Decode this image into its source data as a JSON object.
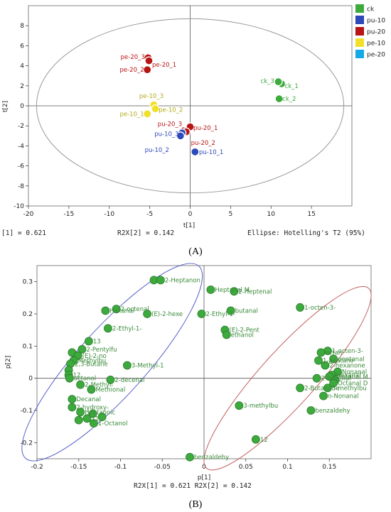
{
  "chart_data": [
    {
      "type": "scatter",
      "panel": "(A)",
      "xlabel": "t[1]",
      "ylabel": "t[2]",
      "xlim": [
        -20,
        20
      ],
      "ylim": [
        -10,
        10
      ],
      "xticks": [
        -20,
        -15,
        -10,
        -5,
        0,
        5,
        10,
        15
      ],
      "yticks": [
        8,
        6,
        4,
        2,
        0,
        -2,
        -4,
        -6,
        -8,
        -10
      ],
      "colors": {
        "ck": "#3daa3d",
        "pu-10": "#2e49b8",
        "pu-20": "#b81414",
        "pe-10": "#f0e02a",
        "pe-20": "#17a8e8"
      },
      "legend": [
        {
          "name": "ck",
          "color": "#3daa3d"
        },
        {
          "name": "pu-10",
          "color": "#2e49b8"
        },
        {
          "name": "pu-20",
          "color": "#b81414"
        },
        {
          "name": "pe-10",
          "color": "#f0e02a"
        },
        {
          "name": "pe-20",
          "color": "#17a8e8"
        }
      ],
      "points": [
        {
          "label": "ck_1",
          "group": "ck",
          "x": 11.3,
          "y": 2.2,
          "lx": 0.4,
          "ly": -0.2,
          "anchor": "start"
        },
        {
          "label": "ck_3",
          "group": "ck",
          "x": 10.9,
          "y": 2.4,
          "lx": -0.5,
          "ly": 0.1,
          "anchor": "end"
        },
        {
          "label": "ck_2",
          "group": "ck",
          "x": 11.0,
          "y": 0.7,
          "lx": 0.4,
          "ly": 0.0,
          "anchor": "start"
        },
        {
          "label": "pe-20_3",
          "group": "pu-20",
          "x": -5.2,
          "y": 4.8,
          "lx": -0.4,
          "ly": 0.1,
          "anchor": "end"
        },
        {
          "label": "pe-20_1",
          "group": "pu-20",
          "x": -5.1,
          "y": 4.5,
          "lx": 0.4,
          "ly": -0.4,
          "anchor": "start"
        },
        {
          "label": "pe-20_2",
          "group": "pu-20",
          "x": -5.3,
          "y": 3.6,
          "lx": -0.4,
          "ly": 0.0,
          "anchor": "end"
        },
        {
          "label": "pe-10_3",
          "group": "pe-10",
          "x": -4.5,
          "y": 0.1,
          "lx": -0.3,
          "ly": 0.9,
          "anchor": "middle"
        },
        {
          "label": "pe-10_2",
          "group": "pe-10",
          "x": -4.3,
          "y": -0.3,
          "lx": 0.4,
          "ly": -0.1,
          "anchor": "start"
        },
        {
          "label": "pe-10_1",
          "group": "pe-10",
          "x": -5.3,
          "y": -0.8,
          "lx": -0.4,
          "ly": 0.0,
          "anchor": "end"
        },
        {
          "label": "pu-20_3",
          "group": "pu-20",
          "x": -0.8,
          "y": -2.5,
          "lx": -0.2,
          "ly": 0.7,
          "anchor": "end"
        },
        {
          "label": "pu-20_1",
          "group": "pu-20",
          "x": 0.0,
          "y": -2.1,
          "lx": 0.4,
          "ly": -0.1,
          "anchor": "start"
        },
        {
          "label": "pu-20_2",
          "group": "pu-20",
          "x": -0.5,
          "y": -2.6,
          "lx": 0.6,
          "ly": -1.1,
          "anchor": "start"
        },
        {
          "label": "pu-10_3",
          "group": "pu-10",
          "x": -1.0,
          "y": -2.7,
          "lx": -0.4,
          "ly": -0.1,
          "anchor": "end"
        },
        {
          "label": "pu-10_2",
          "group": "pu-10",
          "x": -1.2,
          "y": -3.0,
          "lx": -1.4,
          "ly": -1.4,
          "anchor": "end"
        },
        {
          "label": "pu-10_1",
          "group": "pu-10",
          "x": 0.6,
          "y": -4.6,
          "lx": 0.5,
          "ly": 0.0,
          "anchor": "start"
        }
      ],
      "ellipse": {
        "cx": 0,
        "cy": 0,
        "rx": 19.0,
        "ry": 8.7
      },
      "footer": {
        "left": "[1] = 0.621",
        "mid": "R2X[2] = 0.142",
        "right": "Ellipse: Hotelling's T2 (95%)"
      }
    },
    {
      "type": "scatter",
      "panel": "(B)",
      "xlabel": "p[1]",
      "ylabel": "p[2]",
      "xlim": [
        -0.2,
        0.2
      ],
      "ylim": [
        -0.25,
        0.35
      ],
      "xticks": [
        -0.2,
        -0.15,
        -0.1,
        -0.05,
        0,
        0.05,
        0.1,
        0.15
      ],
      "yticks": [
        0.3,
        0.2,
        0.1,
        0,
        -0.1,
        -0.2
      ],
      "point_color": "#3daa3d",
      "points": [
        {
          "x": -0.06,
          "y": 0.305,
          "label": ""
        },
        {
          "x": -0.052,
          "y": 0.305,
          "label": "2-Heptanon"
        },
        {
          "x": 0.008,
          "y": 0.275,
          "label": "Heptanal M"
        },
        {
          "x": 0.036,
          "y": 0.27,
          "label": "2-Heptenal"
        },
        {
          "x": 0.032,
          "y": 0.21,
          "label": "butanal"
        },
        {
          "x": 0.115,
          "y": 0.22,
          "label": "1-octen-3-"
        },
        {
          "x": -0.105,
          "y": 0.215,
          "label": "2-octenal"
        },
        {
          "x": -0.118,
          "y": 0.21,
          "label": "Hexanal"
        },
        {
          "x": -0.068,
          "y": 0.2,
          "label": "(E)-2-hexe"
        },
        {
          "x": -0.003,
          "y": 0.2,
          "label": "2-Ethyl-1-"
        },
        {
          "x": -0.115,
          "y": 0.155,
          "label": "2-Ethyl-1-"
        },
        {
          "x": 0.025,
          "y": 0.15,
          "label": "(E)-2-Pent"
        },
        {
          "x": 0.027,
          "y": 0.135,
          "label": "ethanol"
        },
        {
          "x": -0.138,
          "y": 0.115,
          "label": "13"
        },
        {
          "x": -0.158,
          "y": 0.08,
          "label": ""
        },
        {
          "x": -0.146,
          "y": 0.09,
          "label": "2-Pentylfu"
        },
        {
          "x": -0.151,
          "y": 0.07,
          "label": "(E)-2-no"
        },
        {
          "x": -0.156,
          "y": 0.055,
          "label": "Methylbu"
        },
        {
          "x": -0.16,
          "y": 0.045,
          "label": "2,3-Butane"
        },
        {
          "x": -0.162,
          "y": 0.025,
          "label": ""
        },
        {
          "x": -0.162,
          "y": 0.01,
          "label": "12"
        },
        {
          "x": -0.161,
          "y": 0.0,
          "label": "octanol"
        },
        {
          "x": -0.092,
          "y": 0.04,
          "label": "3-Methyl-1"
        },
        {
          "x": -0.112,
          "y": -0.005,
          "label": "2-decenal"
        },
        {
          "x": -0.148,
          "y": -0.02,
          "label": "2-Methyl-"
        },
        {
          "x": -0.135,
          "y": -0.035,
          "label": "Methional"
        },
        {
          "x": -0.158,
          "y": -0.065,
          "label": "Decanal"
        },
        {
          "x": -0.158,
          "y": -0.09,
          "label": "2-hydroxy-"
        },
        {
          "x": -0.148,
          "y": -0.105,
          "label": "Heptanoic"
        },
        {
          "x": -0.133,
          "y": -0.11,
          "label": ""
        },
        {
          "x": -0.14,
          "y": -0.125,
          "label": "11"
        },
        {
          "x": -0.122,
          "y": -0.12,
          "label": ""
        },
        {
          "x": -0.132,
          "y": -0.14,
          "label": "1-Octanol"
        },
        {
          "x": -0.15,
          "y": -0.13,
          "label": ""
        },
        {
          "x": 0.042,
          "y": -0.085,
          "label": "3-methylbu"
        },
        {
          "x": 0.062,
          "y": -0.19,
          "label": "12"
        },
        {
          "x": -0.017,
          "y": -0.245,
          "label": "benzaldehy"
        },
        {
          "x": 0.128,
          "y": -0.1,
          "label": "benzaldehy"
        },
        {
          "x": 0.148,
          "y": 0.085,
          "label": "1-octen-3-"
        },
        {
          "x": 0.14,
          "y": 0.08,
          "label": "octan"
        },
        {
          "x": 0.155,
          "y": 0.06,
          "label": "pentanal"
        },
        {
          "x": 0.137,
          "y": 0.055,
          "label": "1-pentano"
        },
        {
          "x": 0.145,
          "y": 0.04,
          "label": "2-hexanone"
        },
        {
          "x": 0.16,
          "y": 0.02,
          "label": "Nonanal"
        },
        {
          "x": 0.153,
          "y": 0.01,
          "label": "Hexanal"
        },
        {
          "x": 0.15,
          "y": 0.005,
          "label": "Heptanal M"
        },
        {
          "x": 0.157,
          "y": -0.005,
          "label": ""
        },
        {
          "x": 0.135,
          "y": 0.0,
          "label": "2-hexenal"
        },
        {
          "x": 0.155,
          "y": -0.015,
          "label": "Octanal D"
        },
        {
          "x": 0.115,
          "y": -0.03,
          "label": "2-Butanone"
        },
        {
          "x": 0.148,
          "y": -0.03,
          "label": "3-methylbu"
        },
        {
          "x": 0.143,
          "y": -0.055,
          "label": "n-Nonanal"
        }
      ],
      "ellipses": [
        {
          "cx": -0.11,
          "cy": 0.05,
          "rx": 0.155,
          "ry": 0.105,
          "rotate": -48,
          "color": "#5560c8"
        },
        {
          "cx": 0.1,
          "cy": 0.0,
          "rx": 0.145,
          "ry": 0.085,
          "rotate": -48,
          "color": "#c46060"
        }
      ],
      "footer": "R2X[1] = 0.621  R2X[2] = 0.142"
    }
  ],
  "captions": {
    "a": "(A)",
    "b": "(B)"
  }
}
